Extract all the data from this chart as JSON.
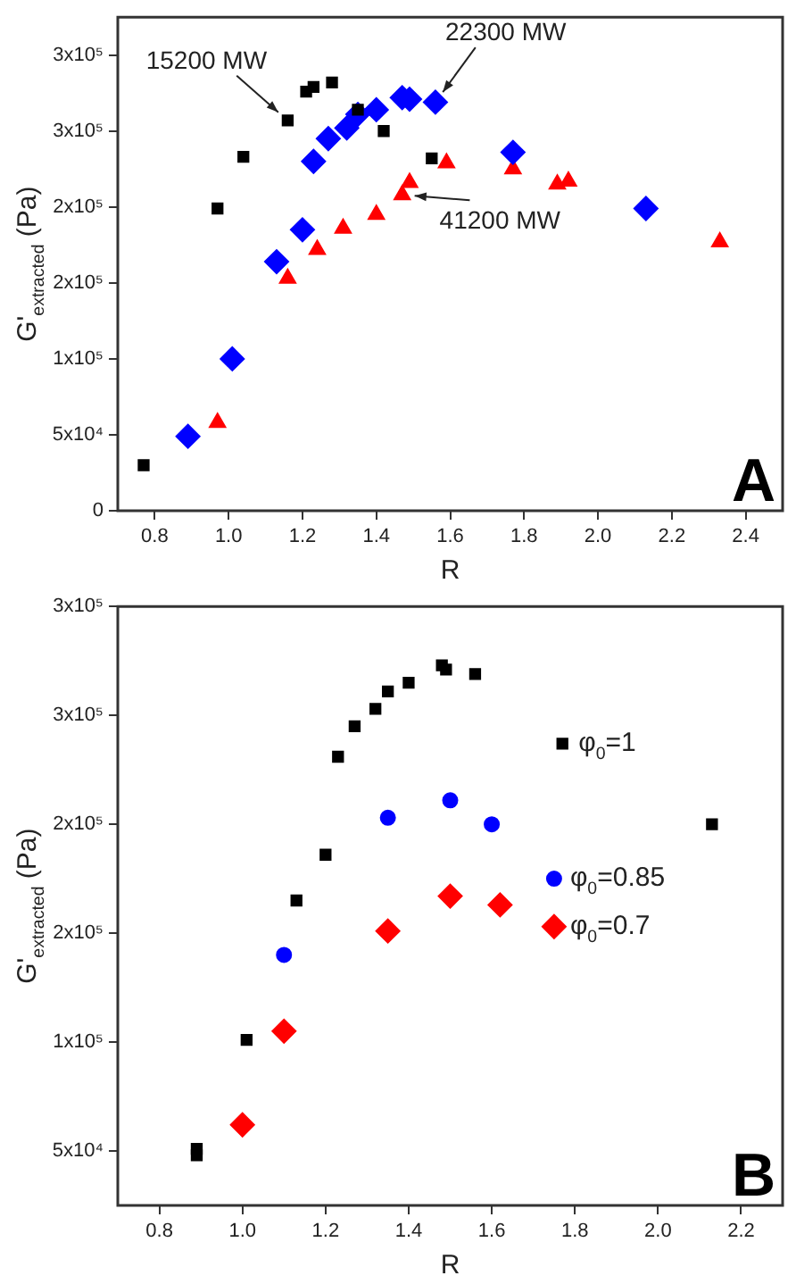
{
  "chart_data": [
    {
      "type": "scatter",
      "xlabel": "R",
      "ylabel": "G'$_{extracted}$ (Pa)",
      "xlim": [
        0.7,
        2.5
      ],
      "ylim": [
        0,
        325000
      ],
      "xticks": [
        {
          "value": 0.8,
          "label": "0.8"
        },
        {
          "value": 1,
          "label": "1.0"
        },
        {
          "value": 1.2,
          "label": "1.2"
        },
        {
          "value": 1.4,
          "label": "1.4"
        },
        {
          "value": 1.6,
          "label": "1.6"
        },
        {
          "value": 1.8,
          "label": "1.8"
        },
        {
          "value": 2,
          "label": "2.0"
        },
        {
          "value": 2.2,
          "label": "2.2"
        },
        {
          "value": 2.4,
          "label": "2.4"
        }
      ],
      "yticks": [
        {
          "value": 0,
          "label": "0"
        },
        {
          "value": 50000,
          "label": "5x10⁴"
        },
        {
          "value": 100000,
          "label": "1x10⁵"
        },
        {
          "value": 150000,
          "label": "2x10⁵"
        },
        {
          "value": 200000,
          "label": "2x10⁵"
        },
        {
          "value": 250000,
          "label": "3x10⁵"
        },
        {
          "value": 300000,
          "label": "3x10⁵"
        }
      ],
      "grid": false,
      "legend": false,
      "series": [
        {
          "color": "#000000",
          "marker": "square",
          "x": [
            0.77,
            0.97,
            1.04,
            1.16,
            1.21,
            1.23,
            1.28,
            1.35,
            1.42,
            1.55
          ],
          "values": [
            30000,
            199000,
            233000,
            257000,
            276000,
            279000,
            282000,
            264000,
            250000,
            232000
          ]
        },
        {
          "color": "#0000ff",
          "marker": "diamond",
          "x": [
            0.89,
            1.01,
            1.13,
            1.2,
            1.23,
            1.27,
            1.32,
            1.35,
            1.4,
            1.47,
            1.49,
            1.56,
            1.77,
            2.13
          ],
          "values": [
            49000,
            100000,
            164000,
            185000,
            230000,
            245000,
            252000,
            261000,
            264000,
            272000,
            271000,
            269000,
            236000,
            199000
          ]
        },
        {
          "color": "#ff0000",
          "marker": "triangle",
          "x": [
            0.97,
            1.16,
            1.24,
            1.31,
            1.4,
            1.47,
            1.49,
            1.59,
            1.77,
            1.89,
            1.92,
            2.33
          ],
          "values": [
            58000,
            153000,
            172000,
            186000,
            195000,
            208000,
            216000,
            229000,
            225000,
            215000,
            217000,
            177000
          ]
        }
      ],
      "annotations": [
        {
          "text": "15200 MW",
          "x": 1.16,
          "y": 257000
        },
        {
          "text": "22300 MW",
          "x": 1.56,
          "y": 269000
        },
        {
          "text": "41200 MW",
          "x": 1.47,
          "y": 208000
        },
        "A"
      ]
    },
    {
      "type": "scatter",
      "xlabel": "R",
      "ylabel": "G'$_{extracted}$ (Pa)",
      "xlim": [
        0.7,
        2.3
      ],
      "ylim": [
        25000,
        300000
      ],
      "xticks": [
        {
          "value": 0.8,
          "label": "0.8"
        },
        {
          "value": 1,
          "label": "1.0"
        },
        {
          "value": 1.2,
          "label": "1.2"
        },
        {
          "value": 1.4,
          "label": "1.4"
        },
        {
          "value": 1.6,
          "label": "1.6"
        },
        {
          "value": 1.8,
          "label": "1.8"
        },
        {
          "value": 2,
          "label": "2.0"
        },
        {
          "value": 2.2,
          "label": "2.2"
        }
      ],
      "yticks": [
        {
          "value": 50000,
          "label": "5x10⁴"
        },
        {
          "value": 100000,
          "label": "1x10⁵"
        },
        {
          "value": 150000,
          "label": "2x10⁵"
        },
        {
          "value": 200000,
          "label": "2x10⁵"
        },
        {
          "value": 250000,
          "label": "3x10⁵"
        },
        {
          "value": 300000,
          "label": "3x10⁵"
        }
      ],
      "grid": false,
      "legend": false,
      "series": [
        {
          "name": "φ$_{0}$=1",
          "color": "#000000",
          "marker": "square",
          "x": [
            0.89,
            0.89,
            1.01,
            1.13,
            1.2,
            1.23,
            1.27,
            1.32,
            1.35,
            1.4,
            1.48,
            1.49,
            1.56,
            1.77,
            2.13
          ],
          "values": [
            51000,
            48000,
            101000,
            165000,
            186000,
            231000,
            245000,
            253000,
            261000,
            265000,
            273000,
            271000,
            269000,
            237000,
            200000
          ]
        },
        {
          "name": "φ$_{0}$=0.85",
          "color": "#0000ff",
          "marker": "circle",
          "x": [
            1.1,
            1.35,
            1.5,
            1.6,
            1.75
          ],
          "values": [
            140000,
            203000,
            211000,
            200000,
            175000
          ]
        },
        {
          "name": "φ$_{0}$=0.7",
          "color": "#ff0000",
          "marker": "diamond",
          "x": [
            1.0,
            1.1,
            1.35,
            1.5,
            1.62,
            1.75
          ],
          "values": [
            62000,
            105000,
            151000,
            167000,
            163000,
            153000
          ]
        }
      ],
      "annotations": [
        "B"
      ]
    }
  ]
}
